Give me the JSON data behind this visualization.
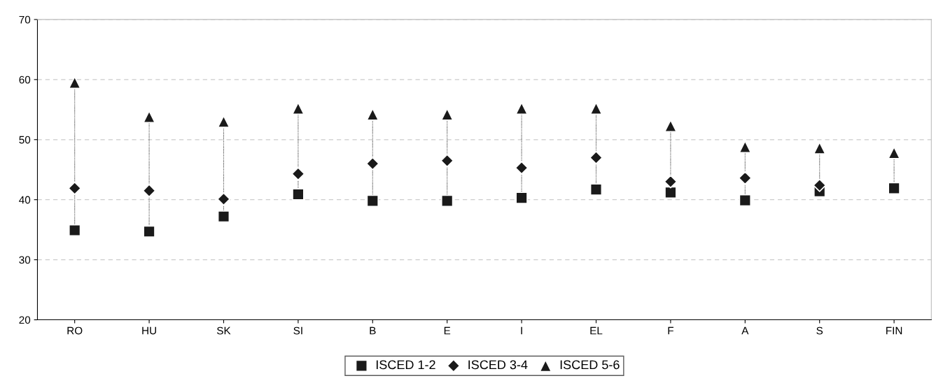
{
  "chart_data": {
    "type": "scatter",
    "categories": [
      "RO",
      "HU",
      "SK",
      "SI",
      "B",
      "E",
      "I",
      "EL",
      "F",
      "A",
      "S",
      "FIN"
    ],
    "series": [
      {
        "name": "ISCED 1-2",
        "color": "#1a1a1a",
        "marker": "square",
        "values": [
          34.9,
          34.7,
          37.2,
          40.9,
          39.8,
          39.8,
          40.3,
          41.7,
          41.2,
          39.9,
          41.4,
          41.9
        ]
      },
      {
        "name": "ISCED 3-4",
        "color": "#1a1a1a",
        "marker": "diamond",
        "values": [
          41.9,
          41.5,
          40.1,
          44.3,
          46.0,
          46.5,
          45.3,
          47.0,
          43.0,
          43.6,
          42.4,
          null
        ]
      },
      {
        "name": "ISCED 5-6",
        "color": "#1a1a1a",
        "marker": "triangle",
        "values": [
          59.5,
          53.8,
          53.0,
          55.2,
          54.2,
          54.2,
          55.2,
          55.2,
          52.3,
          48.8,
          48.6,
          47.8
        ]
      }
    ],
    "ylim": [
      20,
      70
    ],
    "yticks": [
      20,
      30,
      40,
      50,
      60,
      70
    ],
    "grid": "y",
    "legend": "bottom"
  }
}
